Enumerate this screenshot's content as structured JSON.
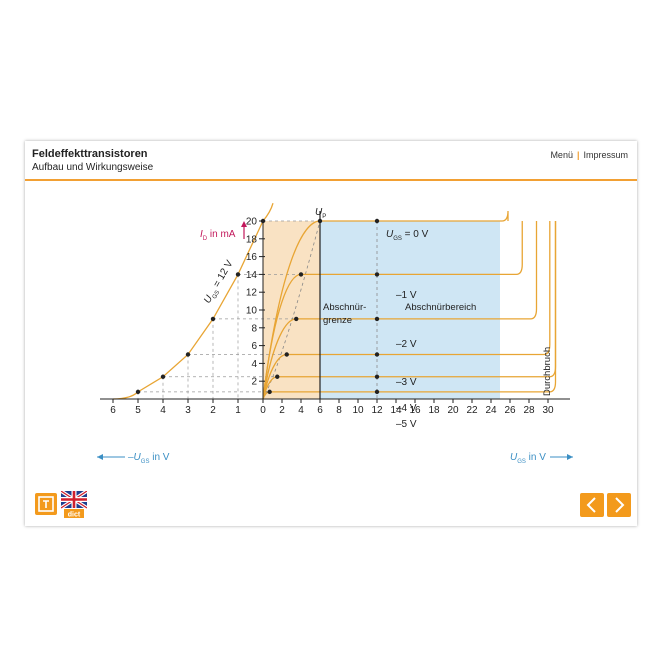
{
  "header": {
    "title": "Feldeffekttransistoren",
    "subtitle": "Aufbau und Wirkungsweise",
    "menu_label": "Menü",
    "imprint_label": "Impressum"
  },
  "chart_data": {
    "type": "line",
    "title": "",
    "ylabel_main": "I",
    "ylabel_sub": "D",
    "ylabel_unit": " in mA",
    "right_xlabel_main": "U",
    "right_xlabel_sub": "GS",
    "right_xlabel_unit": " in V",
    "left_xlabel_prefix": "–U",
    "left_xlabel_sub": "GS",
    "left_xlabel_unit": " in V",
    "up_label_main": "U",
    "up_label_sub": "P",
    "y_ticks": [
      "2",
      "4",
      "6",
      "8",
      "10",
      "12",
      "14",
      "16",
      "18",
      "20"
    ],
    "x_right_ticks": [
      "0",
      "2",
      "4",
      "6",
      "8",
      "10",
      "12",
      "14",
      "16",
      "18",
      "20",
      "22",
      "24",
      "26",
      "28",
      "30"
    ],
    "x_left_ticks": [
      "1",
      "2",
      "3",
      "4",
      "5",
      "6"
    ],
    "region_pinch_label_1": "Abschnür-",
    "region_pinch_label_2": "grenze",
    "region_sat_label": "Abschnürbereich",
    "breakdown_label": "Durchbruch",
    "transfer_label_main": "U",
    "transfer_label_sub": "GS",
    "transfer_label_rest": " = 12 V",
    "curve_label_0_main": "U",
    "curve_label_0_sub": "GS",
    "curve_label_0_rest": " = 0 V",
    "series": [
      {
        "name": "–1 V",
        "vgs": -1,
        "id_sat": 14,
        "up": 4
      },
      {
        "name": "–2 V",
        "vgs": -2,
        "id_sat": 9,
        "up": 3.5
      },
      {
        "name": "–3 V",
        "vgs": -3,
        "id_sat": 5,
        "up": 2.5
      },
      {
        "name": "–4 V",
        "vgs": -4,
        "id_sat": 2.5,
        "up": 1.5
      },
      {
        "name": "–5 V",
        "vgs": -5,
        "id_sat": 0.8,
        "up": 0.7
      }
    ],
    "series_zero": {
      "vgs": 0,
      "id_sat": 20,
      "up": 6
    },
    "transfer_points": [
      [
        5,
        0.8
      ],
      [
        4,
        2.5
      ],
      [
        3,
        5
      ],
      [
        2,
        9
      ],
      [
        1,
        14
      ],
      [
        0,
        20
      ]
    ],
    "x_range_right": [
      0,
      30
    ],
    "x_range_left": [
      0,
      6
    ],
    "y_range": [
      0,
      21
    ]
  },
  "icons": {
    "tool": "text-tool-icon",
    "language": "uk-flag-icon",
    "prev": "chevron-left-icon",
    "next": "chevron-right-icon"
  },
  "dict_label": "dict",
  "colors": {
    "accent": "#f39a1c",
    "curve": "#e8a534",
    "pinch_bg": "#f9e2c3",
    "sat_bg": "#cfe6f4",
    "ylabel": "#c2185b",
    "xlabel": "#3b8fc4"
  }
}
